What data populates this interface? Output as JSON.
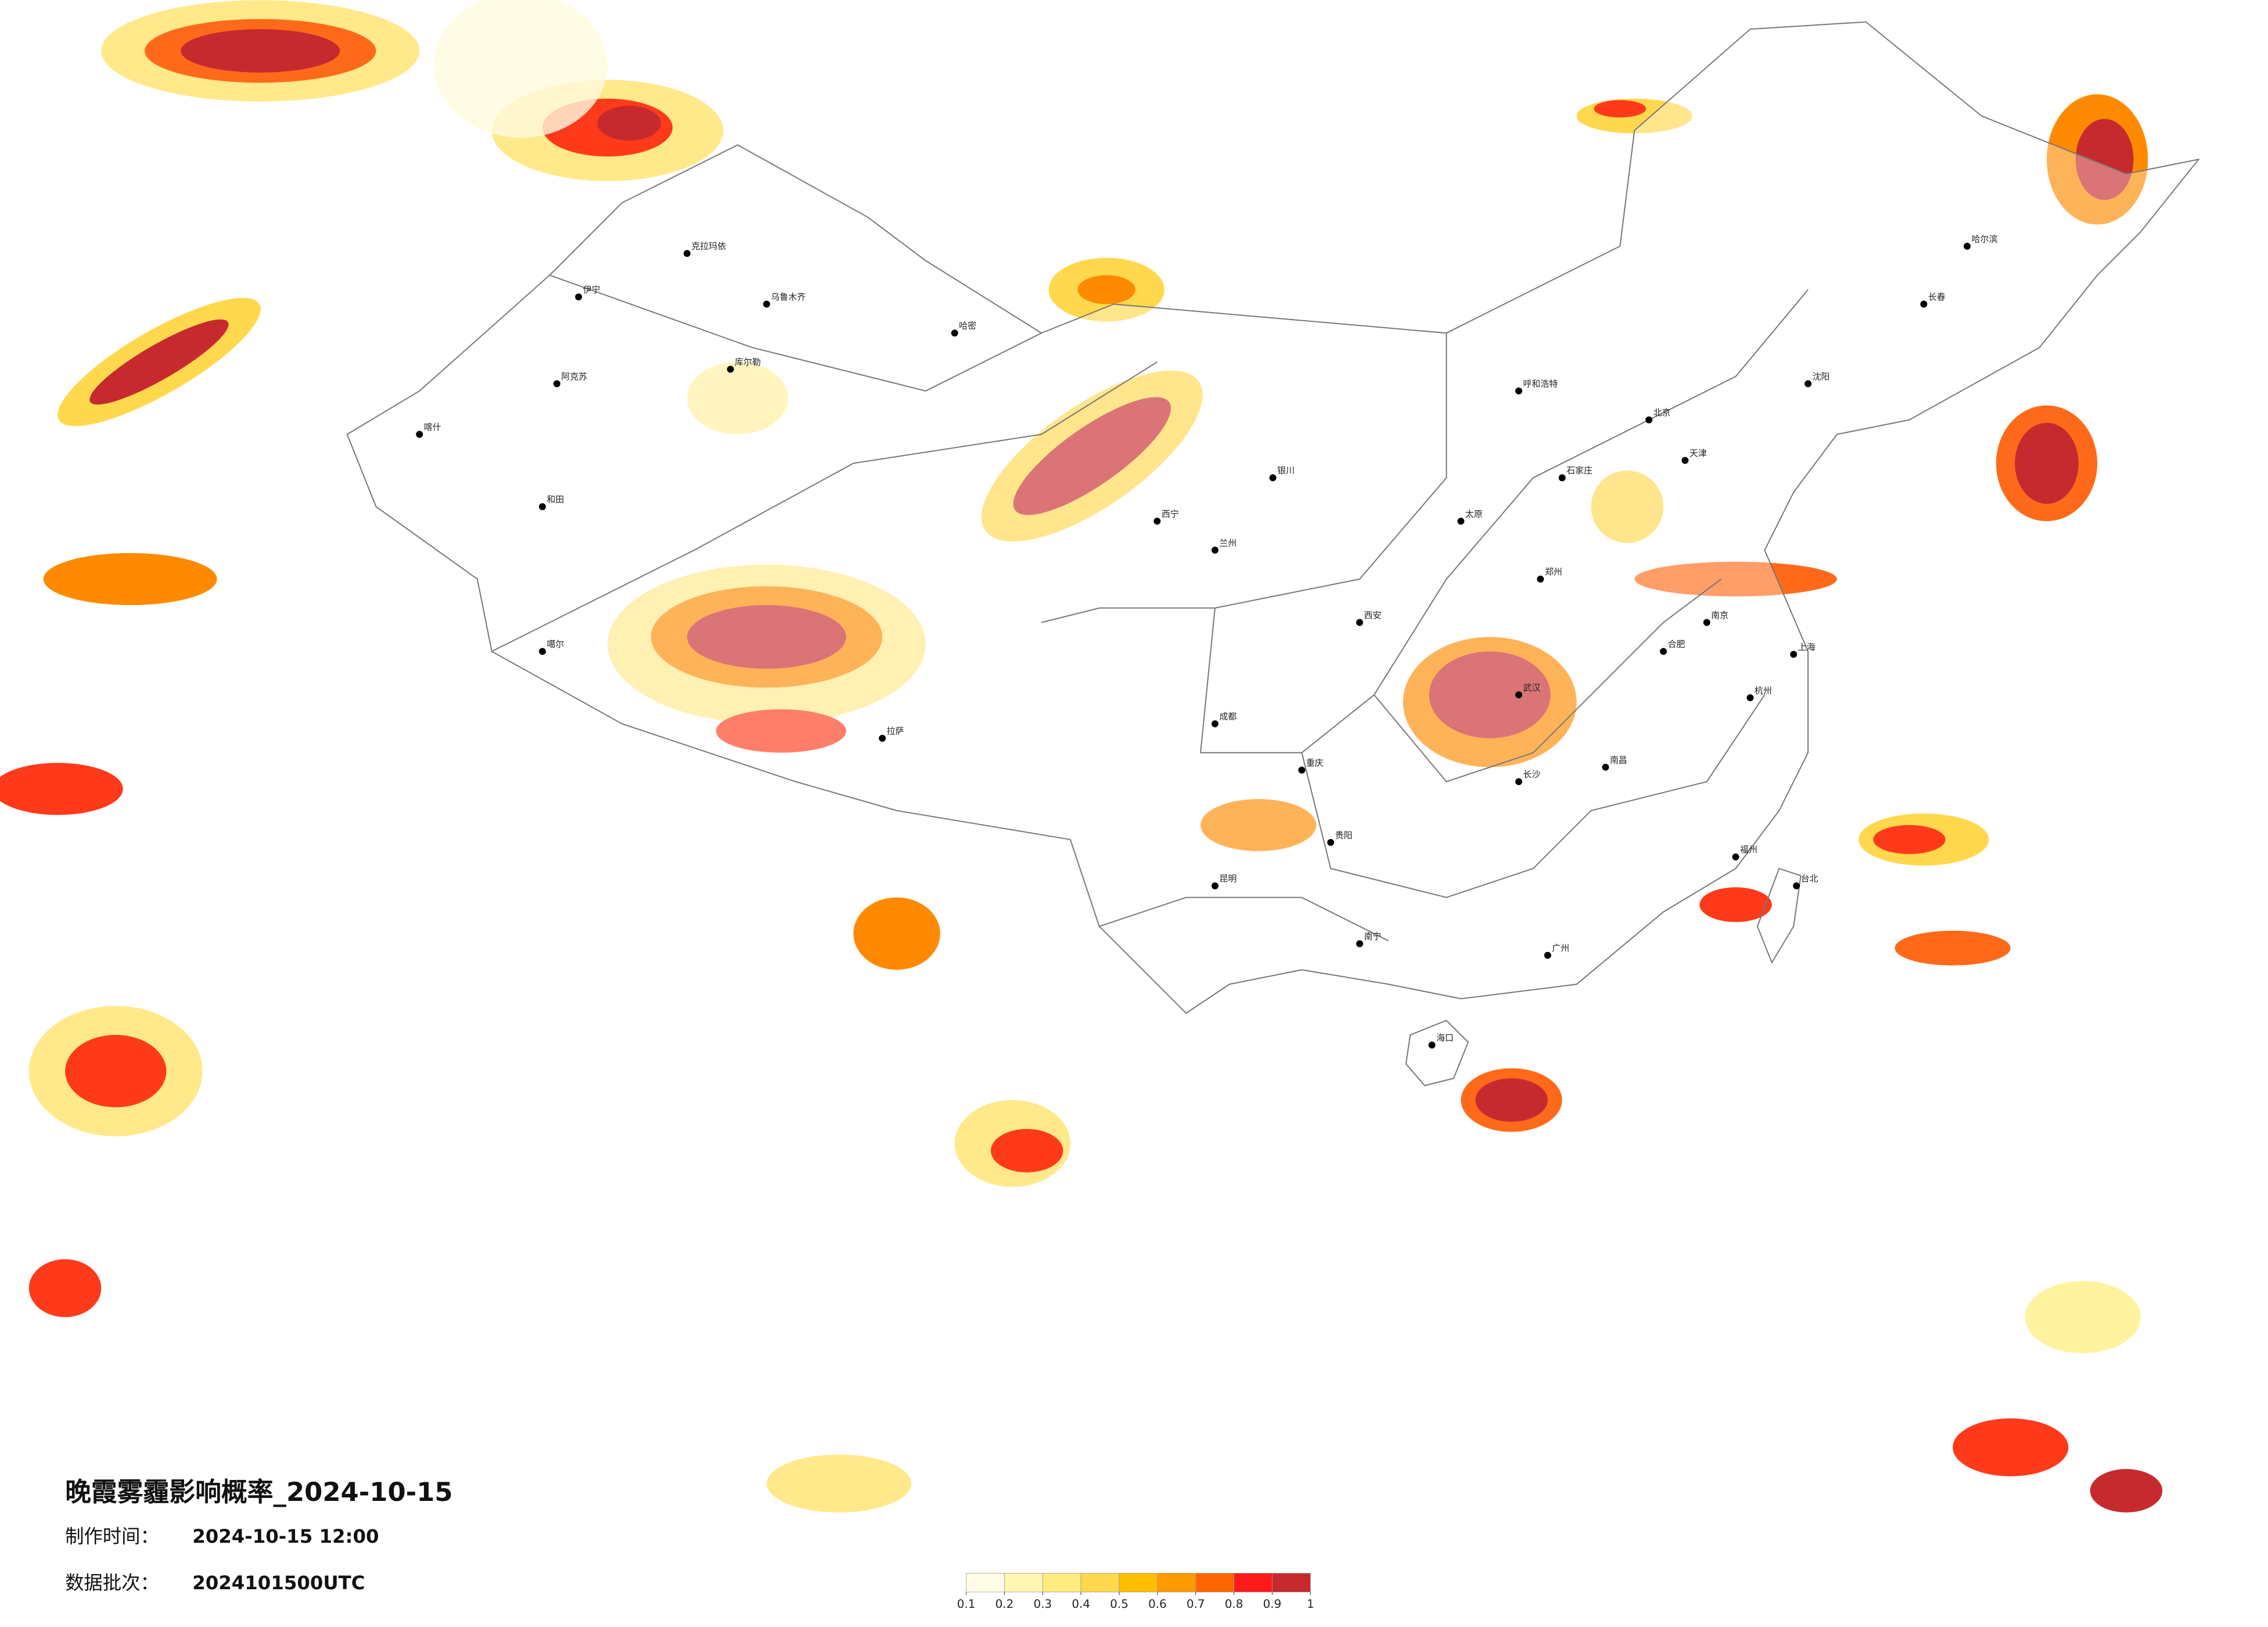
{
  "header": {
    "title": "晚霞雾霾影响概率_2024-10-15",
    "made_label": "制作时间：",
    "made_value": "2024-10-15 12:00",
    "batch_label": "数据批次：",
    "batch_value": "2024101500UTC"
  },
  "legend": {
    "colors": [
      "#fffde6",
      "#fff6b3",
      "#ffec80",
      "#ffd84d",
      "#ffbf00",
      "#ff9900",
      "#ff6600",
      "#ff1a1a",
      "#c62a2f"
    ],
    "ticks": [
      0.1,
      0.2,
      0.3,
      0.4,
      0.5,
      0.6,
      0.7,
      0.8,
      0.9,
      1
    ]
  },
  "cities": [
    "克拉玛依",
    "伊宁",
    "乌鲁木齐",
    "库尔勒",
    "阿克苏",
    "喀什",
    "和田",
    "哈密",
    "噶尔",
    "拉萨",
    "西宁",
    "兰州",
    "银川",
    "呼和浩特",
    "太原",
    "石家庄",
    "北京",
    "天津",
    "沈阳",
    "长春",
    "哈尔滨",
    "西安",
    "成都",
    "重庆",
    "郑州",
    "武汉",
    "合肥",
    "南京",
    "上海",
    "杭州",
    "南昌",
    "长沙",
    "福州",
    "广州",
    "南宁",
    "贵阳",
    "昆明",
    "海口",
    "台北"
  ]
}
